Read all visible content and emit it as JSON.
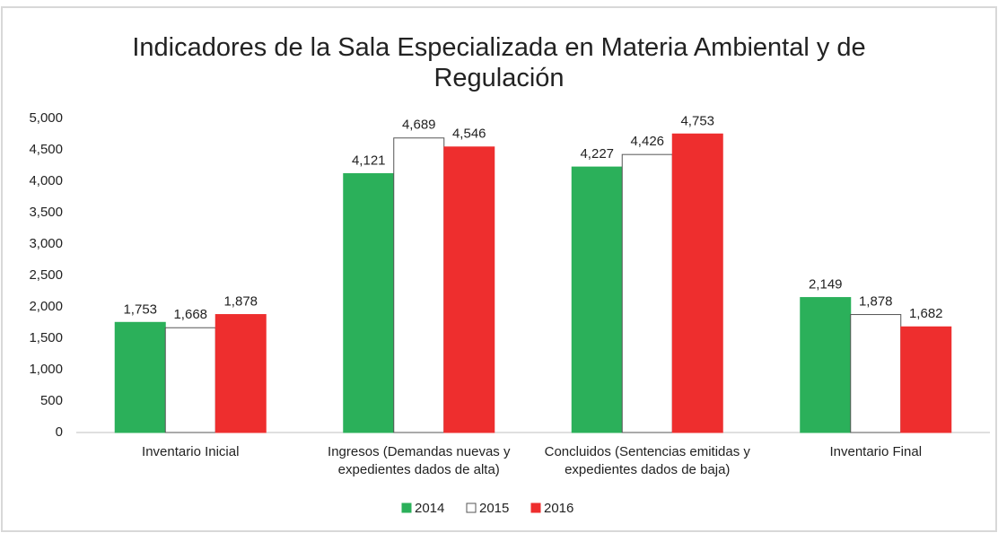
{
  "chart_data": {
    "type": "bar",
    "title": "Indicadores de la Sala Especializada en Materia Ambiental y de Regulación",
    "categories": [
      "Inventario Inicial",
      "Ingresos (Demandas nuevas y expedientes dados de alta)",
      "Concluidos (Sentencias emitidas y expedientes dados de baja)",
      "Inventario Final"
    ],
    "series": [
      {
        "name": "2014",
        "color": "#2bb05a",
        "values": [
          1753,
          4121,
          4227,
          2149
        ],
        "value_labels": [
          "1,753",
          "4,121",
          "4,227",
          "2,149"
        ]
      },
      {
        "name": "2015",
        "color": "#ffffff",
        "values": [
          1668,
          4689,
          4426,
          1878
        ],
        "value_labels": [
          "1,668",
          "4,689",
          "4,426",
          "1,878"
        ]
      },
      {
        "name": "2016",
        "color": "#ee2e2e",
        "values": [
          1878,
          4546,
          4753,
          1682
        ],
        "value_labels": [
          "1,878",
          "4,546",
          "4,753",
          "1,682"
        ]
      }
    ],
    "ylim": [
      0,
      5000
    ],
    "yticks": [
      0,
      500,
      {
        "value": 1000,
        "label": "1,000"
      },
      {
        "value": 1500,
        "label": "1,500"
      },
      {
        "value": 2000,
        "label": "2,000"
      },
      {
        "value": 2500,
        "label": "2,500"
      },
      {
        "value": 3000,
        "label": "3,000"
      },
      {
        "value": 3500,
        "label": "3,500"
      },
      {
        "value": 4000,
        "label": "4,000"
      },
      {
        "value": 4500,
        "label": "4,500"
      },
      {
        "value": 5000,
        "label": "5,000"
      }
    ],
    "grid": false,
    "legend": "bottom"
  }
}
